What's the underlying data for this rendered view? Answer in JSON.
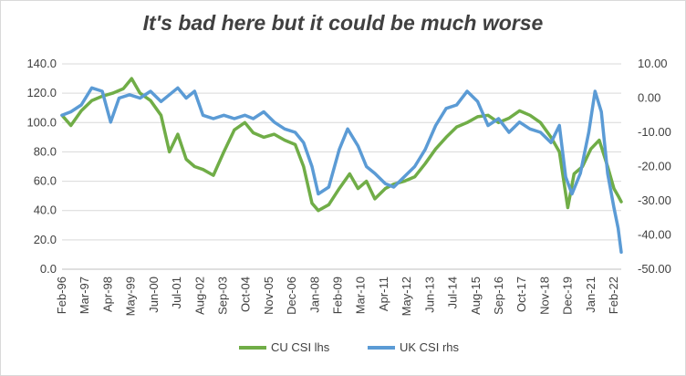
{
  "chart_data": {
    "type": "line",
    "title": "It's bad here but it could be much worse",
    "x_tick_labels": [
      "Feb-96",
      "Mar-97",
      "Apr-98",
      "May-99",
      "Jun-00",
      "Jul-01",
      "Aug-02",
      "Sep-03",
      "Oct-04",
      "Nov-05",
      "Dec-06",
      "Jan-08",
      "Feb-09",
      "Mar-10",
      "Apr-11",
      "May-12",
      "Jun-13",
      "Jul-14",
      "Aug-15",
      "Sep-16",
      "Oct-17",
      "Nov-18",
      "Dec-19",
      "Jan-21",
      "Feb-22"
    ],
    "y_left": {
      "ylim": [
        0,
        140
      ],
      "ticks": [
        "0.0",
        "20.0",
        "40.0",
        "60.0",
        "80.0",
        "100.0",
        "120.0",
        "140.0"
      ]
    },
    "y_right": {
      "ylim": [
        -50,
        10
      ],
      "ticks": [
        "10.00",
        "0.00",
        "-10.00",
        "-20.00",
        "-30.00",
        "-40.00",
        "-50.00"
      ]
    },
    "x_range": [
      1996.08,
      2022.75
    ],
    "grid": "horizontal",
    "legend_position": "bottom",
    "series": [
      {
        "name": "CU CSI lhs",
        "axis": "left",
        "color": "#70ad47",
        "points": [
          [
            1996.08,
            105
          ],
          [
            1996.5,
            98
          ],
          [
            1997.0,
            108
          ],
          [
            1997.5,
            115
          ],
          [
            1998.0,
            118
          ],
          [
            1998.5,
            120
          ],
          [
            1999.0,
            123
          ],
          [
            1999.4,
            130
          ],
          [
            1999.8,
            120
          ],
          [
            2000.3,
            115
          ],
          [
            2000.8,
            105
          ],
          [
            2001.2,
            80
          ],
          [
            2001.6,
            92
          ],
          [
            2002.0,
            75
          ],
          [
            2002.4,
            70
          ],
          [
            2002.8,
            68
          ],
          [
            2003.3,
            64
          ],
          [
            2003.8,
            80
          ],
          [
            2004.3,
            95
          ],
          [
            2004.8,
            100
          ],
          [
            2005.2,
            93
          ],
          [
            2005.7,
            90
          ],
          [
            2006.2,
            92
          ],
          [
            2006.7,
            88
          ],
          [
            2007.2,
            85
          ],
          [
            2007.6,
            70
          ],
          [
            2008.0,
            45
          ],
          [
            2008.3,
            40
          ],
          [
            2008.8,
            44
          ],
          [
            2009.3,
            55
          ],
          [
            2009.8,
            65
          ],
          [
            2010.2,
            55
          ],
          [
            2010.6,
            60
          ],
          [
            2011.0,
            48
          ],
          [
            2011.5,
            55
          ],
          [
            2011.9,
            58
          ],
          [
            2012.4,
            60
          ],
          [
            2012.9,
            63
          ],
          [
            2013.4,
            72
          ],
          [
            2013.9,
            82
          ],
          [
            2014.4,
            90
          ],
          [
            2014.9,
            97
          ],
          [
            2015.4,
            100
          ],
          [
            2015.9,
            104
          ],
          [
            2016.4,
            105
          ],
          [
            2016.9,
            100
          ],
          [
            2017.4,
            103
          ],
          [
            2017.9,
            108
          ],
          [
            2018.4,
            105
          ],
          [
            2018.9,
            100
          ],
          [
            2019.4,
            90
          ],
          [
            2019.8,
            80
          ],
          [
            2020.2,
            42
          ],
          [
            2020.5,
            65
          ],
          [
            2020.9,
            70
          ],
          [
            2021.3,
            82
          ],
          [
            2021.7,
            88
          ],
          [
            2022.1,
            70
          ],
          [
            2022.4,
            55
          ],
          [
            2022.6,
            50
          ],
          [
            2022.75,
            46
          ]
        ]
      },
      {
        "name": "UK CSI rhs",
        "axis": "right",
        "color": "#5b9bd5",
        "points": [
          [
            1996.08,
            -5
          ],
          [
            1996.5,
            -4
          ],
          [
            1997.0,
            -2
          ],
          [
            1997.5,
            3
          ],
          [
            1998.0,
            2
          ],
          [
            1998.4,
            -7
          ],
          [
            1998.8,
            0
          ],
          [
            1999.3,
            1
          ],
          [
            1999.8,
            0
          ],
          [
            2000.3,
            2
          ],
          [
            2000.8,
            -1
          ],
          [
            2001.2,
            1
          ],
          [
            2001.6,
            3
          ],
          [
            2002.0,
            0
          ],
          [
            2002.4,
            2
          ],
          [
            2002.8,
            -5
          ],
          [
            2003.3,
            -6
          ],
          [
            2003.8,
            -5
          ],
          [
            2004.3,
            -6
          ],
          [
            2004.8,
            -5
          ],
          [
            2005.2,
            -6
          ],
          [
            2005.7,
            -4
          ],
          [
            2006.2,
            -7
          ],
          [
            2006.7,
            -9
          ],
          [
            2007.2,
            -10
          ],
          [
            2007.6,
            -13
          ],
          [
            2008.0,
            -20
          ],
          [
            2008.3,
            -28
          ],
          [
            2008.8,
            -26
          ],
          [
            2009.3,
            -15
          ],
          [
            2009.7,
            -9
          ],
          [
            2010.2,
            -14
          ],
          [
            2010.6,
            -20
          ],
          [
            2011.0,
            -22
          ],
          [
            2011.5,
            -25
          ],
          [
            2011.9,
            -26
          ],
          [
            2012.4,
            -23
          ],
          [
            2012.9,
            -20
          ],
          [
            2013.4,
            -15
          ],
          [
            2013.9,
            -8
          ],
          [
            2014.4,
            -3
          ],
          [
            2014.9,
            -2
          ],
          [
            2015.4,
            2
          ],
          [
            2015.9,
            -1
          ],
          [
            2016.4,
            -8
          ],
          [
            2016.9,
            -6
          ],
          [
            2017.4,
            -10
          ],
          [
            2017.9,
            -7
          ],
          [
            2018.4,
            -9
          ],
          [
            2018.9,
            -10
          ],
          [
            2019.4,
            -13
          ],
          [
            2019.8,
            -8
          ],
          [
            2020.1,
            -23
          ],
          [
            2020.4,
            -28
          ],
          [
            2020.8,
            -22
          ],
          [
            2021.2,
            -10
          ],
          [
            2021.5,
            2
          ],
          [
            2021.8,
            -4
          ],
          [
            2022.1,
            -22
          ],
          [
            2022.4,
            -32
          ],
          [
            2022.6,
            -38
          ],
          [
            2022.75,
            -45
          ]
        ]
      }
    ]
  }
}
